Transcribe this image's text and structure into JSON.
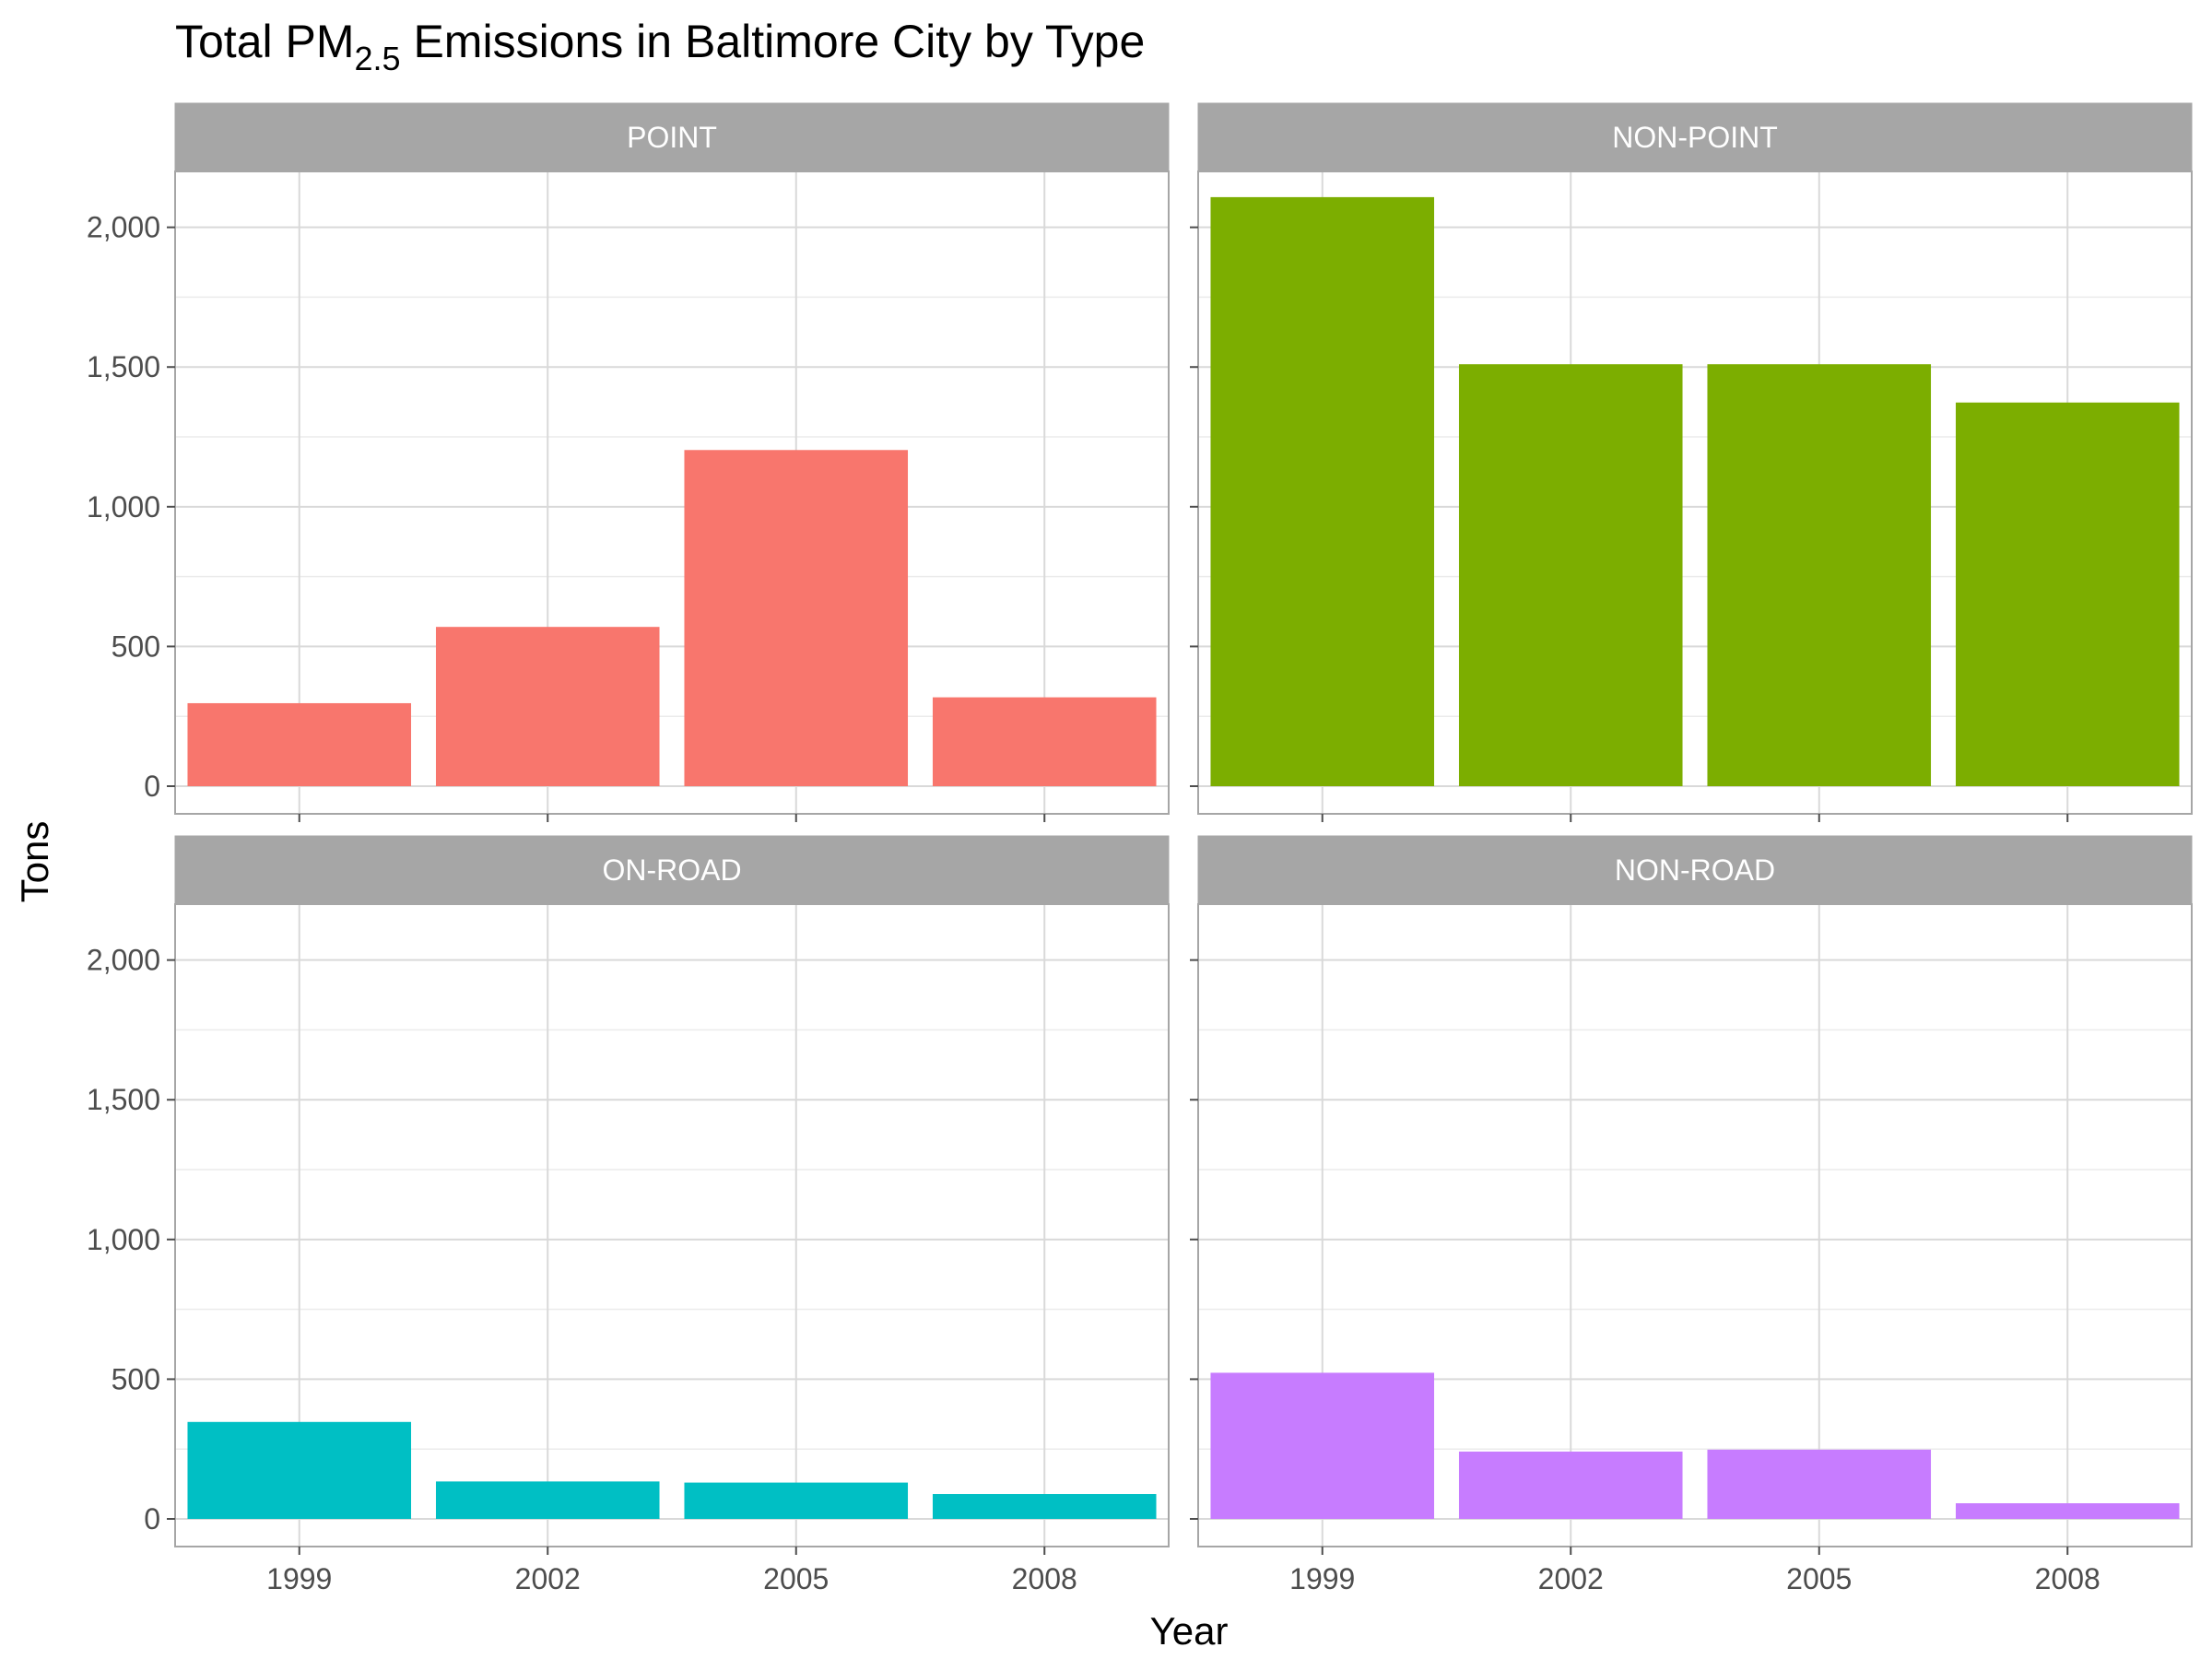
{
  "chart_data": {
    "type": "bar",
    "title": {
      "prefix": "Total PM",
      "subscript": "2.5",
      "suffix": " Emissions in Baltimore City by Type"
    },
    "xlabel": "Year",
    "ylabel": "Tons",
    "categories": [
      "1999",
      "2002",
      "2005",
      "2008"
    ],
    "ylim": [
      0,
      2200
    ],
    "yticks": [
      0,
      500,
      1000,
      1500,
      2000
    ],
    "ytick_labels": [
      "0",
      "500",
      "1,000",
      "1,500",
      "2,000"
    ],
    "grid": true,
    "legend": "none",
    "panels": [
      {
        "name": "POINT",
        "color": "#F8766D",
        "values": [
          297,
          570,
          1203,
          318
        ]
      },
      {
        "name": "NON-POINT",
        "color": "#7CAE00",
        "values": [
          2108,
          1510,
          1510,
          1373
        ]
      },
      {
        "name": "ON-ROAD",
        "color": "#00BFC4",
        "values": [
          347,
          134,
          130,
          89
        ]
      },
      {
        "name": "NON-ROAD",
        "color": "#C77CFF",
        "values": [
          523,
          241,
          248,
          56
        ]
      }
    ]
  }
}
